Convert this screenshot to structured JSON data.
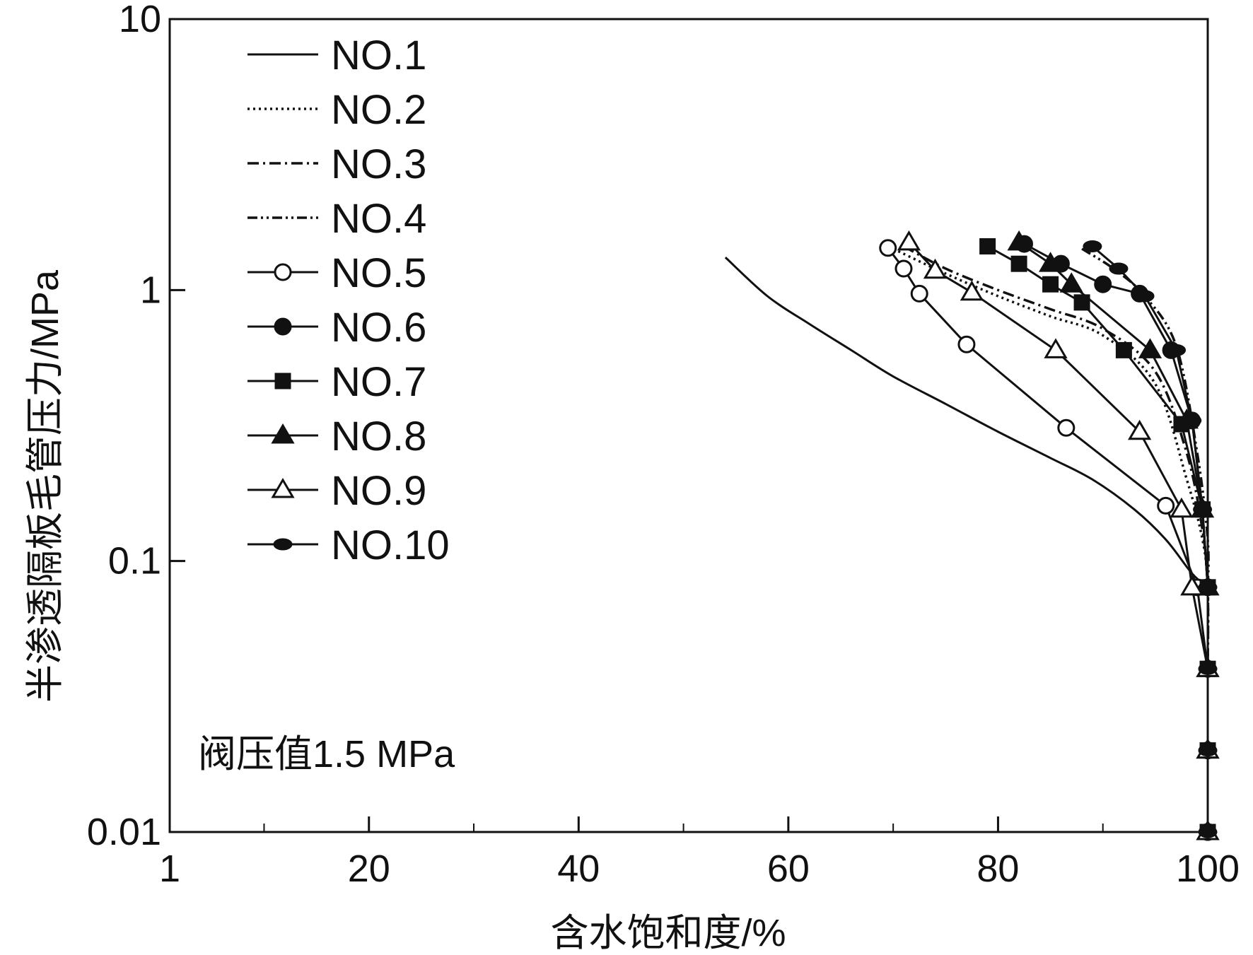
{
  "chart_data": {
    "type": "line",
    "title": "",
    "xlabel": "含水饱和度/%",
    "ylabel": "半渗透隔板毛管压力/MPa",
    "xlim": [
      1,
      100
    ],
    "ylim": [
      0.01,
      10
    ],
    "y_scale": "log",
    "x_ticks": [
      1,
      20,
      40,
      60,
      80,
      100
    ],
    "x_tick_labels": [
      "1",
      "20",
      "40",
      "60",
      "80",
      "100"
    ],
    "y_ticks": [
      0.01,
      0.1,
      1,
      10
    ],
    "y_tick_labels": [
      "0.01",
      "0.1",
      "1",
      "10"
    ],
    "grid": false,
    "legend_position": "top-left",
    "annotation": "阀压值1.5 MPa",
    "colors": {
      "line": "#111111",
      "background": "#ffffff"
    },
    "series": [
      {
        "name": "NO.1",
        "marker": "none",
        "dash": "solid",
        "x": [
          54,
          58,
          62,
          66,
          70,
          75,
          80,
          85,
          89,
          93,
          96,
          98.5,
          100
        ],
        "y": [
          1.32,
          0.95,
          0.75,
          0.6,
          0.48,
          0.38,
          0.3,
          0.24,
          0.2,
          0.155,
          0.12,
          0.09,
          0.08
        ]
      },
      {
        "name": "NO.2",
        "marker": "none",
        "dash": "dotted",
        "x": [
          70,
          75,
          80,
          85,
          90,
          95,
          98,
          99.5,
          100,
          100
        ],
        "y": [
          1.42,
          1.15,
          0.95,
          0.8,
          0.68,
          0.45,
          0.2,
          0.12,
          0.08,
          0.04
        ]
      },
      {
        "name": "NO.3",
        "marker": "none",
        "dash": "dashdot",
        "x": [
          71,
          75,
          80,
          85,
          90,
          95,
          98,
          99.5,
          100,
          100
        ],
        "y": [
          1.45,
          1.2,
          1.0,
          0.85,
          0.72,
          0.5,
          0.25,
          0.13,
          0.08,
          0.04
        ]
      },
      {
        "name": "NO.4",
        "marker": "none",
        "dash": "dashdotdot",
        "x": [
          88,
          91,
          94,
          97,
          99,
          100,
          100
        ],
        "y": [
          1.42,
          1.2,
          0.95,
          0.62,
          0.25,
          0.12,
          0.08
        ]
      },
      {
        "name": "NO.5",
        "marker": "circle-open",
        "dash": "solid",
        "x": [
          69.5,
          71,
          72.5,
          77,
          86.5,
          96,
          99,
          100,
          100,
          100
        ],
        "y": [
          1.43,
          1.2,
          0.97,
          0.63,
          0.31,
          0.16,
          0.08,
          0.04,
          0.02,
          0.01
        ]
      },
      {
        "name": "NO.6",
        "marker": "circle-filled",
        "dash": "solid",
        "x": [
          82.5,
          86,
          90,
          93.5,
          96.5,
          98.5,
          99.5,
          100,
          100,
          100,
          100
        ],
        "y": [
          1.48,
          1.25,
          1.05,
          0.97,
          0.6,
          0.33,
          0.155,
          0.08,
          0.04,
          0.02,
          0.01
        ]
      },
      {
        "name": "NO.7",
        "marker": "square-filled",
        "dash": "solid",
        "x": [
          79,
          82,
          85,
          88,
          92,
          97.5,
          99.5,
          100,
          100,
          100,
          100
        ],
        "y": [
          1.45,
          1.25,
          1.05,
          0.9,
          0.6,
          0.32,
          0.155,
          0.08,
          0.04,
          0.02,
          0.01
        ]
      },
      {
        "name": "NO.8",
        "marker": "triangle-filled",
        "dash": "solid",
        "x": [
          82,
          85,
          87,
          94.5,
          98,
          99.5,
          100,
          100,
          100,
          100
        ],
        "y": [
          1.5,
          1.25,
          1.05,
          0.6,
          0.33,
          0.155,
          0.08,
          0.04,
          0.02,
          0.01
        ]
      },
      {
        "name": "NO.9",
        "marker": "triangle-open",
        "dash": "solid",
        "x": [
          71.5,
          74,
          77.5,
          85.5,
          93.5,
          97.5,
          98.5,
          100,
          100,
          100
        ],
        "y": [
          1.5,
          1.18,
          0.98,
          0.6,
          0.3,
          0.155,
          0.08,
          0.04,
          0.02,
          0.01
        ]
      },
      {
        "name": "NO.10",
        "marker": "ellipse-filled",
        "dash": "solid",
        "x": [
          89,
          91.5,
          94,
          97,
          98.5,
          99.5,
          100,
          100,
          100,
          100
        ],
        "y": [
          1.45,
          1.2,
          0.95,
          0.6,
          0.33,
          0.155,
          0.08,
          0.04,
          0.02,
          0.01
        ]
      }
    ]
  }
}
